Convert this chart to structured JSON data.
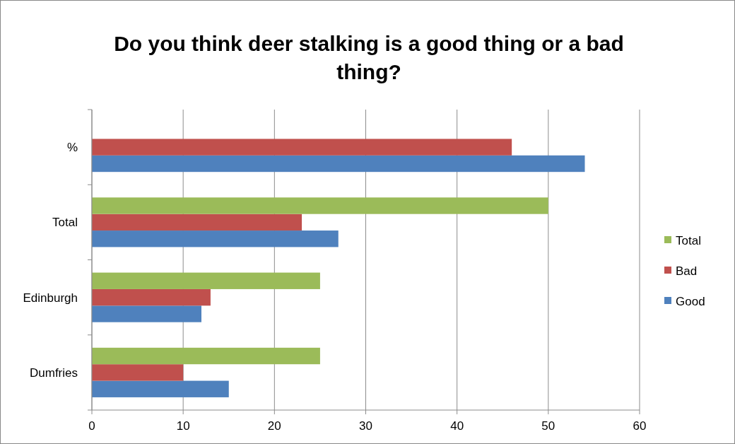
{
  "chart_data": {
    "type": "bar",
    "orientation": "horizontal",
    "title": "Do you think deer stalking is a good thing or a bad thing?",
    "categories": [
      "%",
      "Total",
      "Edinburgh",
      "Dumfries"
    ],
    "series": [
      {
        "name": "Good",
        "color": "#4f81bd",
        "values": [
          54,
          27,
          12,
          15
        ]
      },
      {
        "name": "Bad",
        "color": "#c0504d",
        "values": [
          46,
          23,
          13,
          10
        ]
      },
      {
        "name": "Total",
        "color": "#9bbb59",
        "values": [
          null,
          50,
          25,
          25
        ]
      }
    ],
    "xlim": [
      0,
      60
    ],
    "xticks": [
      0,
      10,
      20,
      30,
      40,
      50,
      60
    ],
    "grid": "x",
    "legend": "right"
  }
}
